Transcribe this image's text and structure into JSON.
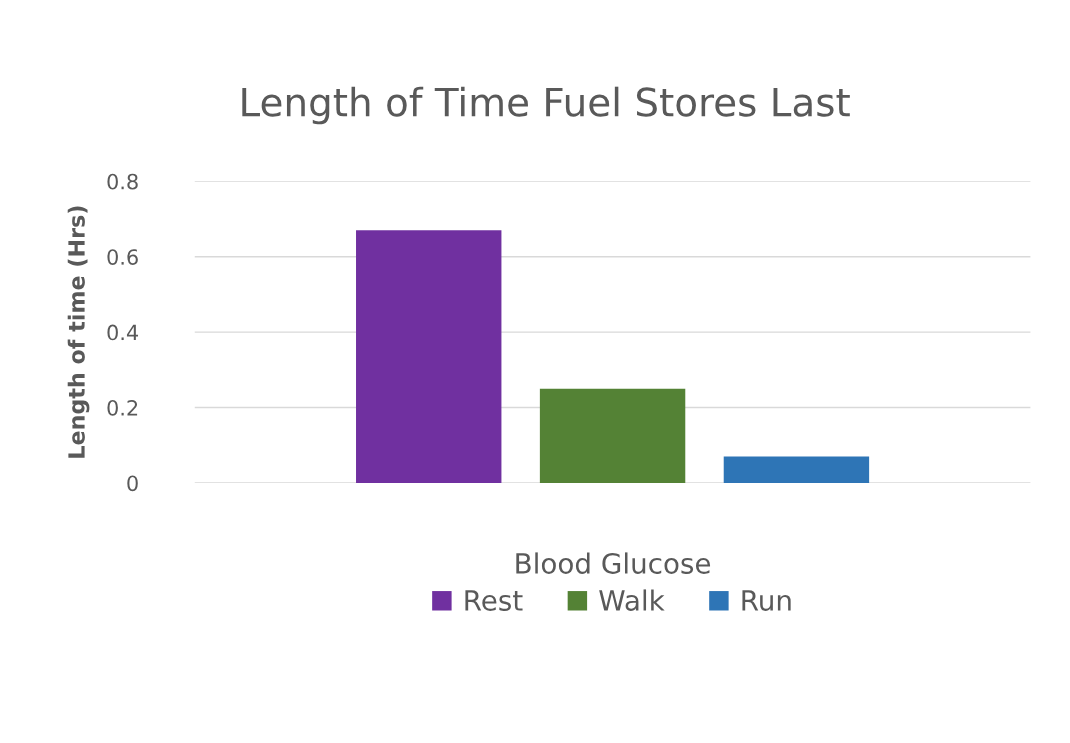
{
  "chart_data": {
    "type": "bar",
    "title": "Length of Time Fuel Stores Last",
    "ylabel": "Length of time (Hrs)",
    "categories": [
      "Blood Glucose"
    ],
    "series": [
      {
        "name": "Rest",
        "color": "#7030a0",
        "values": [
          0.67
        ]
      },
      {
        "name": "Walk",
        "color": "#548235",
        "values": [
          0.25
        ]
      },
      {
        "name": "Run",
        "color": "#2e75b6",
        "values": [
          0.07
        ]
      }
    ],
    "ylim": [
      0,
      0.8
    ],
    "yticks": [
      0,
      0.2,
      0.4,
      0.6,
      0.8
    ],
    "grid": "y",
    "legend": "bottom"
  }
}
